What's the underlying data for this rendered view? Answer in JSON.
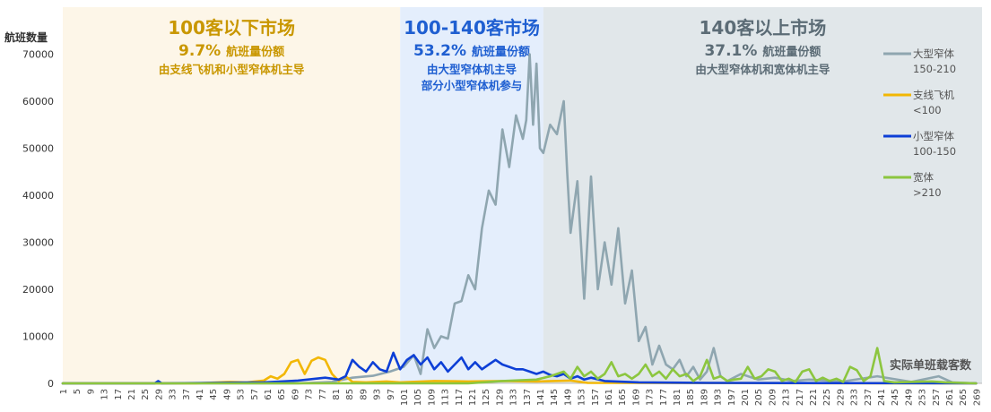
{
  "chart_data": {
    "type": "line",
    "y_axis_title": "航班数量",
    "x_axis_title": "实际单班载客数",
    "ylim": [
      0,
      80000
    ],
    "yticks": [
      0,
      10000,
      20000,
      30000,
      40000,
      50000,
      60000,
      70000
    ],
    "xlim": [
      1,
      269
    ],
    "xticks": [
      1,
      5,
      9,
      13,
      17,
      21,
      25,
      29,
      33,
      37,
      41,
      45,
      49,
      53,
      57,
      61,
      65,
      69,
      73,
      77,
      81,
      85,
      89,
      93,
      97,
      101,
      105,
      109,
      113,
      117,
      121,
      125,
      129,
      133,
      137,
      141,
      145,
      149,
      153,
      157,
      161,
      165,
      169,
      173,
      177,
      181,
      185,
      189,
      193,
      197,
      201,
      205,
      209,
      213,
      217,
      221,
      225,
      229,
      233,
      237,
      241,
      245,
      249,
      253,
      257,
      261,
      265,
      269
    ],
    "grid": false,
    "legend_position": "right",
    "regions": [
      {
        "key": "r1",
        "range": [
          1,
          100
        ],
        "fill": "#fdf6e8",
        "title": "100客以下市场",
        "share_pct": "9.7%",
        "share_label": "航班量份额",
        "desc": [
          "由支线飞机和小型窄体机主导"
        ],
        "color": "#c99700"
      },
      {
        "key": "r2",
        "range": [
          100,
          142
        ],
        "fill": "#e4eefc",
        "title": "100-140客市场",
        "share_pct": "53.2%",
        "share_label": "航班量份额",
        "desc": [
          "由大型窄体机主导",
          "部分小型窄体机参与"
        ],
        "color": "#1f5fd1"
      },
      {
        "key": "r3",
        "range": [
          142,
          271
        ],
        "fill": "#e1e7ea",
        "title": "140客以上市场",
        "share_pct": "37.1%",
        "share_label": "航班量份额",
        "desc": [
          "由大型窄体机和宽体机主导"
        ],
        "color": "#5c6c76"
      }
    ],
    "series": [
      {
        "name": "大型窄体",
        "sub": "150-210",
        "color": "#8fa6b0",
        "points": [
          [
            1,
            0
          ],
          [
            70,
            0
          ],
          [
            80,
            300
          ],
          [
            86,
            1200
          ],
          [
            92,
            1600
          ],
          [
            97,
            2500
          ],
          [
            101,
            3500
          ],
          [
            104,
            6000
          ],
          [
            106,
            2000
          ],
          [
            108,
            11500
          ],
          [
            110,
            7500
          ],
          [
            112,
            10000
          ],
          [
            114,
            9500
          ],
          [
            116,
            17000
          ],
          [
            118,
            17500
          ],
          [
            120,
            23000
          ],
          [
            122,
            20000
          ],
          [
            124,
            33000
          ],
          [
            126,
            41000
          ],
          [
            128,
            38000
          ],
          [
            130,
            54000
          ],
          [
            132,
            46000
          ],
          [
            134,
            57000
          ],
          [
            136,
            52000
          ],
          [
            137,
            56000
          ],
          [
            138,
            70000
          ],
          [
            139,
            55000
          ],
          [
            140,
            68000
          ],
          [
            141,
            50000
          ],
          [
            142,
            49000
          ],
          [
            144,
            55000
          ],
          [
            146,
            53000
          ],
          [
            148,
            60000
          ],
          [
            149,
            45000
          ],
          [
            150,
            32000
          ],
          [
            152,
            43000
          ],
          [
            154,
            18000
          ],
          [
            156,
            44000
          ],
          [
            158,
            20000
          ],
          [
            160,
            30000
          ],
          [
            162,
            21000
          ],
          [
            164,
            33000
          ],
          [
            166,
            17000
          ],
          [
            168,
            24000
          ],
          [
            170,
            9000
          ],
          [
            172,
            12000
          ],
          [
            174,
            4000
          ],
          [
            176,
            8000
          ],
          [
            178,
            4000
          ],
          [
            180,
            3000
          ],
          [
            182,
            5000
          ],
          [
            184,
            1500
          ],
          [
            186,
            3500
          ],
          [
            188,
            800
          ],
          [
            190,
            2500
          ],
          [
            192,
            7500
          ],
          [
            194,
            1500
          ],
          [
            196,
            500
          ],
          [
            200,
            2000
          ],
          [
            205,
            800
          ],
          [
            210,
            1200
          ],
          [
            215,
            500
          ],
          [
            220,
            800
          ],
          [
            230,
            400
          ],
          [
            240,
            1500
          ],
          [
            250,
            300
          ],
          [
            258,
            1500
          ],
          [
            262,
            200
          ],
          [
            269,
            0
          ]
        ]
      },
      {
        "name": "支线飞机",
        "sub": "<100",
        "color": "#f2b705",
        "points": [
          [
            1,
            0
          ],
          [
            40,
            0
          ],
          [
            50,
            300
          ],
          [
            55,
            200
          ],
          [
            60,
            600
          ],
          [
            62,
            1500
          ],
          [
            64,
            1000
          ],
          [
            66,
            2000
          ],
          [
            68,
            4500
          ],
          [
            70,
            5000
          ],
          [
            72,
            2000
          ],
          [
            74,
            4800
          ],
          [
            76,
            5500
          ],
          [
            78,
            5000
          ],
          [
            80,
            2000
          ],
          [
            82,
            500
          ],
          [
            84,
            1500
          ],
          [
            86,
            300
          ],
          [
            90,
            200
          ],
          [
            96,
            400
          ],
          [
            100,
            200
          ],
          [
            110,
            500
          ],
          [
            120,
            400
          ],
          [
            130,
            500
          ],
          [
            140,
            400
          ],
          [
            150,
            600
          ],
          [
            155,
            100
          ],
          [
            269,
            0
          ]
        ]
      },
      {
        "name": "小型窄体",
        "sub": "100-150",
        "color": "#0d3fd6",
        "points": [
          [
            1,
            0
          ],
          [
            28,
            0
          ],
          [
            29,
            500
          ],
          [
            30,
            0
          ],
          [
            60,
            200
          ],
          [
            70,
            600
          ],
          [
            78,
            1200
          ],
          [
            82,
            800
          ],
          [
            84,
            1500
          ],
          [
            86,
            5000
          ],
          [
            88,
            3500
          ],
          [
            90,
            2500
          ],
          [
            92,
            4500
          ],
          [
            94,
            3000
          ],
          [
            96,
            2500
          ],
          [
            98,
            6500
          ],
          [
            100,
            3000
          ],
          [
            102,
            5000
          ],
          [
            104,
            6000
          ],
          [
            106,
            4000
          ],
          [
            108,
            5500
          ],
          [
            110,
            3000
          ],
          [
            112,
            4500
          ],
          [
            114,
            2500
          ],
          [
            116,
            4000
          ],
          [
            118,
            5500
          ],
          [
            120,
            3000
          ],
          [
            122,
            4500
          ],
          [
            124,
            3000
          ],
          [
            126,
            4000
          ],
          [
            128,
            5000
          ],
          [
            130,
            4000
          ],
          [
            132,
            3500
          ],
          [
            134,
            3000
          ],
          [
            136,
            3000
          ],
          [
            138,
            2500
          ],
          [
            140,
            2000
          ],
          [
            142,
            2500
          ],
          [
            144,
            1800
          ],
          [
            146,
            1500
          ],
          [
            148,
            2000
          ],
          [
            150,
            1000
          ],
          [
            152,
            1500
          ],
          [
            154,
            800
          ],
          [
            156,
            1200
          ],
          [
            160,
            500
          ],
          [
            170,
            200
          ],
          [
            190,
            100
          ],
          [
            269,
            0
          ]
        ]
      },
      {
        "name": "宽体",
        "sub": ">210",
        "color": "#8cc63f",
        "points": [
          [
            1,
            0
          ],
          [
            120,
            0
          ],
          [
            130,
            500
          ],
          [
            140,
            800
          ],
          [
            144,
            1500
          ],
          [
            148,
            2500
          ],
          [
            150,
            1000
          ],
          [
            152,
            3500
          ],
          [
            154,
            1500
          ],
          [
            156,
            2500
          ],
          [
            158,
            1000
          ],
          [
            160,
            2000
          ],
          [
            162,
            4500
          ],
          [
            164,
            1500
          ],
          [
            166,
            2000
          ],
          [
            168,
            1000
          ],
          [
            170,
            2000
          ],
          [
            172,
            4000
          ],
          [
            174,
            1500
          ],
          [
            176,
            2500
          ],
          [
            178,
            1000
          ],
          [
            180,
            3000
          ],
          [
            182,
            1500
          ],
          [
            184,
            2000
          ],
          [
            186,
            500
          ],
          [
            188,
            1500
          ],
          [
            190,
            5000
          ],
          [
            192,
            1000
          ],
          [
            194,
            1500
          ],
          [
            196,
            500
          ],
          [
            198,
            800
          ],
          [
            200,
            1000
          ],
          [
            202,
            3500
          ],
          [
            204,
            1000
          ],
          [
            206,
            1500
          ],
          [
            208,
            3000
          ],
          [
            210,
            2500
          ],
          [
            212,
            500
          ],
          [
            214,
            1000
          ],
          [
            216,
            300
          ],
          [
            218,
            2500
          ],
          [
            220,
            3000
          ],
          [
            222,
            500
          ],
          [
            224,
            1200
          ],
          [
            226,
            500
          ],
          [
            228,
            1000
          ],
          [
            230,
            300
          ],
          [
            232,
            3500
          ],
          [
            234,
            2800
          ],
          [
            236,
            500
          ],
          [
            238,
            1500
          ],
          [
            240,
            7500
          ],
          [
            242,
            500
          ],
          [
            245,
            200
          ],
          [
            250,
            300
          ],
          [
            256,
            400
          ],
          [
            260,
            200
          ],
          [
            269,
            0
          ]
        ]
      }
    ]
  }
}
